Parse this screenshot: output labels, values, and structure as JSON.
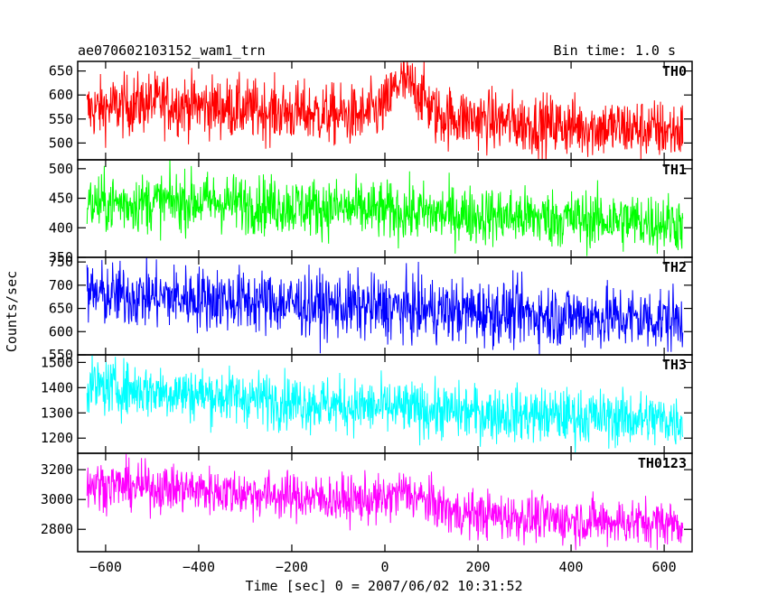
{
  "header": {
    "title": "ae070602103152_wam1_trn",
    "bin_time": "Bin time: 1.0 s"
  },
  "axes": {
    "ylabel": "Counts/sec",
    "xlabel": "Time [sec] 0 = 2007/06/02 10:31:52"
  },
  "chart_data": {
    "type": "line",
    "x_range": [
      -660,
      660
    ],
    "x_ticks": [
      -600,
      -400,
      -200,
      0,
      200,
      400,
      600
    ],
    "x_tick_labels": [
      "−600",
      "−400",
      "−200",
      "0",
      "200",
      "400",
      "600"
    ],
    "data_x_range": [
      -640,
      640
    ],
    "bin_time_s": 1.0,
    "panels": [
      {
        "label": "TH0",
        "color": "#ff0000",
        "ylim": [
          465,
          670
        ],
        "y_ticks": [
          500,
          550,
          600,
          650
        ],
        "trend": [
          [
            -640,
            568
          ],
          [
            -500,
            585
          ],
          [
            -300,
            570
          ],
          [
            -50,
            555
          ],
          [
            0,
            575
          ],
          [
            30,
            628
          ],
          [
            70,
            612
          ],
          [
            110,
            558
          ],
          [
            300,
            540
          ],
          [
            640,
            525
          ]
        ],
        "noise_amp": 32
      },
      {
        "label": "TH1",
        "color": "#00ff00",
        "ylim": [
          350,
          515
        ],
        "y_ticks": [
          350,
          400,
          450,
          500
        ],
        "trend": [
          [
            -640,
            440
          ],
          [
            -400,
            445
          ],
          [
            -100,
            433
          ],
          [
            0,
            428
          ],
          [
            300,
            418
          ],
          [
            640,
            408
          ]
        ],
        "noise_amp": 25
      },
      {
        "label": "TH2",
        "color": "#0000ff",
        "ylim": [
          550,
          760
        ],
        "y_ticks": [
          550,
          600,
          650,
          700,
          750
        ],
        "trend": [
          [
            -640,
            680
          ],
          [
            -400,
            672
          ],
          [
            -100,
            655
          ],
          [
            200,
            642
          ],
          [
            500,
            630
          ],
          [
            640,
            625
          ]
        ],
        "noise_amp": 35
      },
      {
        "label": "TH3",
        "color": "#00ffff",
        "ylim": [
          1140,
          1530
        ],
        "y_ticks": [
          1200,
          1300,
          1400,
          1500
        ],
        "trend": [
          [
            -640,
            1405
          ],
          [
            -400,
            1375
          ],
          [
            -100,
            1330
          ],
          [
            200,
            1300
          ],
          [
            640,
            1270
          ]
        ],
        "noise_amp": 55
      },
      {
        "label": "TH0123",
        "color": "#ff00ff",
        "ylim": [
          2650,
          3310
        ],
        "y_ticks": [
          2800,
          3000,
          3200
        ],
        "trend": [
          [
            -640,
            3105
          ],
          [
            -400,
            3065
          ],
          [
            -100,
            3000
          ],
          [
            0,
            2995
          ],
          [
            40,
            3055
          ],
          [
            80,
            3000
          ],
          [
            150,
            2910
          ],
          [
            400,
            2860
          ],
          [
            640,
            2840
          ]
        ],
        "noise_amp": 80
      }
    ]
  }
}
